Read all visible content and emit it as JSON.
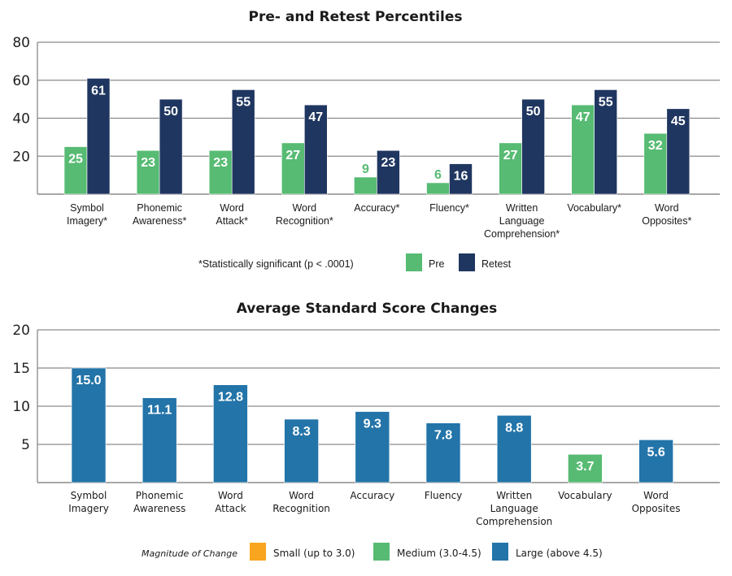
{
  "chart_data": [
    {
      "type": "bar",
      "title": "Pre- and Retest Percentiles",
      "xlabel": "",
      "ylabel": "",
      "ylim": [
        0,
        80
      ],
      "yticks": [
        20,
        40,
        60,
        80
      ],
      "grid": true,
      "categories": [
        [
          "Symbol",
          "Imagery*"
        ],
        [
          "Phonemic",
          "Awareness*"
        ],
        [
          "Word",
          "Attack*"
        ],
        [
          "Word",
          "Recognition*"
        ],
        [
          "Accuracy*"
        ],
        [
          "Fluency*"
        ],
        [
          "Written",
          "Language",
          "Comprehension*"
        ],
        [
          "Vocabulary*"
        ],
        [
          "Word",
          "Opposites*"
        ]
      ],
      "series": [
        {
          "name": "Pre",
          "color": "#57bb73",
          "values": [
            25,
            23,
            23,
            27,
            9,
            6,
            27,
            47,
            32
          ]
        },
        {
          "name": "Retest",
          "color": "#1f3660",
          "values": [
            61,
            50,
            55,
            47,
            23,
            16,
            50,
            55,
            45
          ]
        }
      ],
      "footnote": "*Statistically significant (p < .0001)",
      "legend": [
        {
          "label": "Pre",
          "color": "#57bb73"
        },
        {
          "label": "Retest",
          "color": "#1f3660"
        }
      ],
      "legend_position": "bottom"
    },
    {
      "type": "bar",
      "title": "Average Standard Score Changes",
      "xlabel": "",
      "ylabel": "",
      "ylim": [
        0,
        20
      ],
      "yticks": [
        5,
        10,
        15,
        20
      ],
      "grid": true,
      "categories": [
        [
          "Symbol",
          "Imagery"
        ],
        [
          "Phonemic",
          "Awareness"
        ],
        [
          "Word",
          "Attack"
        ],
        [
          "Word",
          "Recognition"
        ],
        [
          "Accuracy"
        ],
        [
          "Fluency"
        ],
        [
          "Written",
          "Language",
          "Comprehension"
        ],
        [
          "Vocabulary"
        ],
        [
          "Word",
          "Opposites"
        ]
      ],
      "values": [
        15.0,
        11.1,
        12.8,
        8.3,
        9.3,
        7.8,
        8.8,
        3.7,
        5.6
      ],
      "value_labels": [
        "15.0",
        "11.1",
        "12.8",
        "8.3",
        "9.3",
        "7.8",
        "8.8",
        "3.7",
        "5.6"
      ],
      "magnitude": [
        "large",
        "large",
        "large",
        "large",
        "large",
        "large",
        "large",
        "medium",
        "large"
      ],
      "legend_title": "Magnitude of Change",
      "legend": [
        {
          "key": "small",
          "label": "Small (up to 3.0)",
          "color": "#f9a51f"
        },
        {
          "key": "medium",
          "label": "Medium (3.0-4.5)",
          "color": "#57bb73"
        },
        {
          "key": "large",
          "label": "Large (above 4.5)",
          "color": "#2374a8"
        }
      ],
      "legend_position": "bottom"
    }
  ]
}
